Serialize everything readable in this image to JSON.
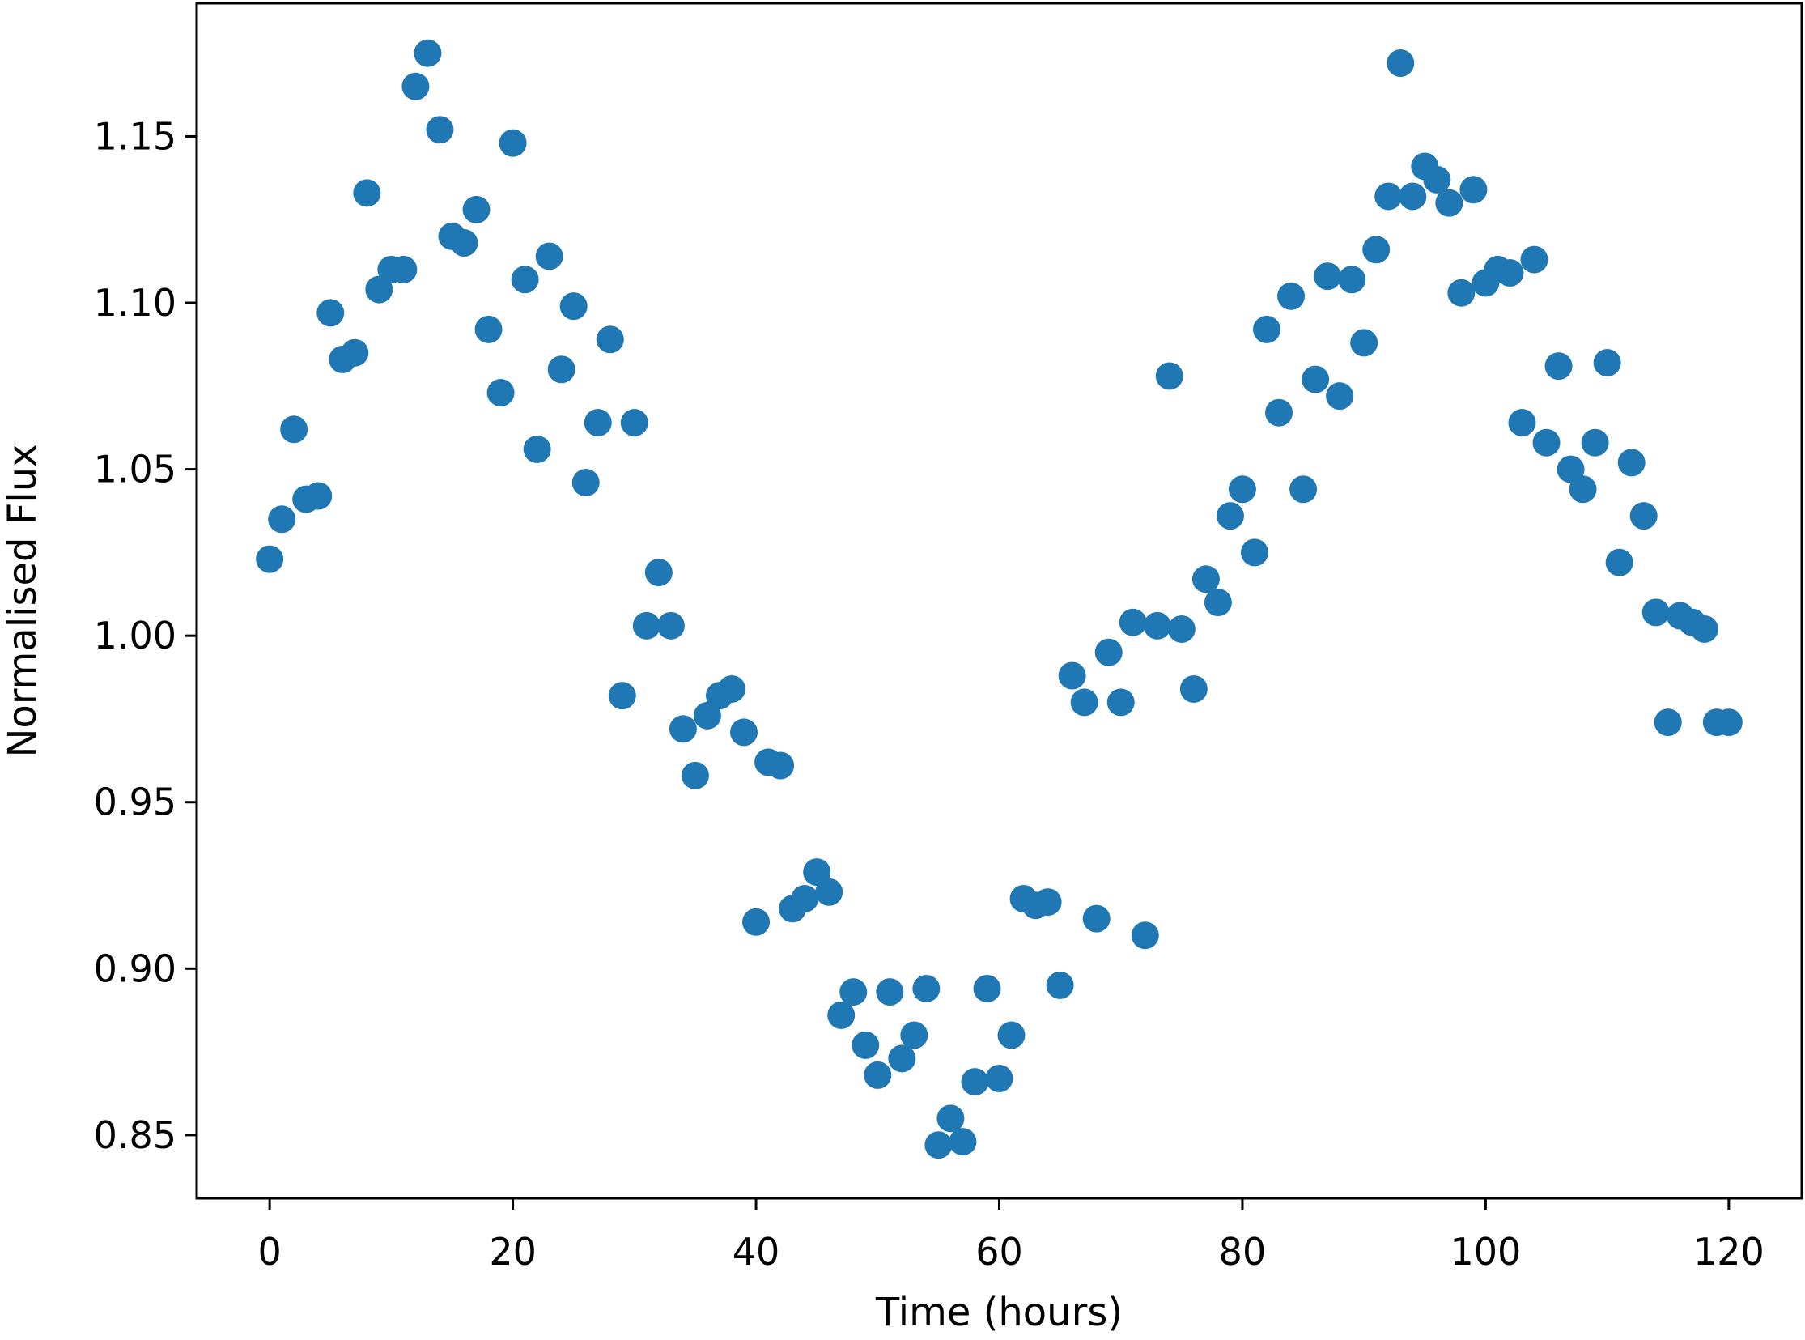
{
  "chart_data": {
    "type": "scatter",
    "xlabel": "Time (hours)",
    "ylabel": "Normalised Flux",
    "xlim": [
      -6,
      126
    ],
    "ylim": [
      0.831,
      1.19
    ],
    "xticks": [
      0,
      20,
      40,
      60,
      80,
      100,
      120
    ],
    "yticks": [
      0.85,
      0.9,
      0.95,
      1.0,
      1.05,
      1.1,
      1.15
    ],
    "xtick_labels": [
      "0",
      "20",
      "40",
      "60",
      "80",
      "100",
      "120"
    ],
    "ytick_labels": [
      "0.85",
      "0.90",
      "0.95",
      "1.00",
      "1.05",
      "1.10",
      "1.15"
    ],
    "grid": false,
    "legend": "none",
    "marker_color": "#1f77b4",
    "series": [
      {
        "x": [
          0,
          1,
          2,
          3,
          4,
          5,
          6,
          7,
          8,
          9,
          10,
          11,
          12,
          13,
          14,
          15,
          16,
          17,
          18,
          19,
          20,
          21,
          22,
          23,
          24,
          25,
          26,
          27,
          28,
          29,
          30,
          31,
          32,
          33,
          34,
          35,
          36,
          37,
          38,
          39,
          40,
          41,
          42,
          43,
          44,
          45,
          46,
          47,
          48,
          49,
          50,
          51,
          52,
          53,
          54,
          55,
          56,
          57,
          58,
          59,
          60,
          61,
          62,
          63,
          64,
          65,
          66,
          67,
          68,
          69,
          70,
          71,
          72,
          73,
          74,
          75,
          76,
          77,
          78,
          79,
          80,
          81,
          82,
          83,
          84,
          85,
          86,
          87,
          88,
          89,
          90,
          91,
          92,
          93,
          94,
          95,
          96,
          97,
          98,
          99,
          100,
          101,
          102,
          103,
          104,
          105,
          106,
          107,
          108,
          109,
          110,
          111,
          112,
          113,
          114,
          115,
          116,
          117,
          118,
          119,
          120
        ],
        "y": [
          1.023,
          1.035,
          1.062,
          1.041,
          1.042,
          1.097,
          1.083,
          1.085,
          1.133,
          1.104,
          1.11,
          1.11,
          1.165,
          1.175,
          1.152,
          1.12,
          1.118,
          1.128,
          1.092,
          1.073,
          1.148,
          1.107,
          1.056,
          1.114,
          1.08,
          1.099,
          1.046,
          1.064,
          1.089,
          0.982,
          1.064,
          1.003,
          1.019,
          1.003,
          0.972,
          0.958,
          0.976,
          0.982,
          0.984,
          0.971,
          0.914,
          0.962,
          0.961,
          0.918,
          0.921,
          0.929,
          0.923,
          0.886,
          0.893,
          0.877,
          0.868,
          0.893,
          0.873,
          0.88,
          0.894,
          0.847,
          0.855,
          0.848,
          0.866,
          0.894,
          0.867,
          0.88,
          0.921,
          0.919,
          0.92,
          0.895,
          0.988,
          0.98,
          0.915,
          0.995,
          0.98,
          1.004,
          0.91,
          1.003,
          1.078,
          1.002,
          0.984,
          1.017,
          1.01,
          1.036,
          1.044,
          1.025,
          1.092,
          1.067,
          1.102,
          1.044,
          1.077,
          1.108,
          1.072,
          1.107,
          1.088,
          1.116,
          1.132,
          1.172,
          1.132,
          1.141,
          1.137,
          1.13,
          1.103,
          1.134,
          1.106,
          1.11,
          1.109,
          1.064,
          1.113,
          1.058,
          1.081,
          1.05,
          1.044,
          1.058,
          1.082,
          1.022,
          1.052,
          1.036,
          1.007,
          0.974,
          1.006,
          1.004,
          1.002,
          0.974,
          0.974
        ]
      }
    ]
  }
}
